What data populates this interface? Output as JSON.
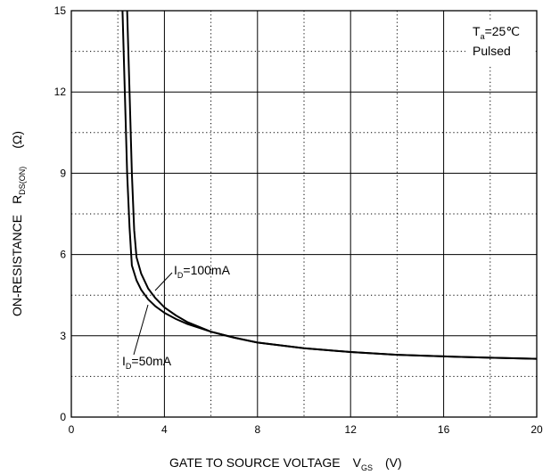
{
  "chart_data": {
    "type": "line",
    "xlim": [
      0,
      20
    ],
    "ylim": [
      0,
      15
    ],
    "x_ticks": [
      0,
      4,
      8,
      12,
      16,
      20
    ],
    "x_tick_labels": [
      "0",
      "4",
      "8",
      "12",
      "16",
      "20"
    ],
    "y_ticks": [
      0,
      3,
      6,
      9,
      12,
      15
    ],
    "y_tick_labels": [
      "0",
      "3",
      "6",
      "9",
      "12",
      "15"
    ],
    "x_minor_ticks": [
      2,
      6,
      10,
      14,
      18
    ],
    "y_minor_ticks": [
      1.5,
      4.5,
      7.5,
      10.5,
      13.5
    ],
    "grid": "major solid, minor dotted",
    "xlabel": {
      "main": "GATE TO SOURCE VOLTAGE",
      "symbol": "V",
      "symbol_sub": "GS",
      "unit": "(V)"
    },
    "ylabel": {
      "main": "ON-RESISTANCE",
      "symbol": "R",
      "symbol_sub": "DS(ON)",
      "unit": "(Ω)"
    },
    "conditions": {
      "temp_symbol": "T",
      "temp_sub": "a",
      "temp_value": "=25℃",
      "mode": "Pulsed"
    },
    "series": [
      {
        "name_symbol": "I",
        "name_sub": "D",
        "name_value": "=100mA",
        "points": [
          [
            2.4,
            15.0
          ],
          [
            2.5,
            12.0
          ],
          [
            2.6,
            9.0
          ],
          [
            2.7,
            6.9
          ],
          [
            2.8,
            5.9
          ],
          [
            3.0,
            5.3
          ],
          [
            3.3,
            4.75
          ],
          [
            3.6,
            4.4
          ],
          [
            4.0,
            4.05
          ],
          [
            4.5,
            3.75
          ],
          [
            5.0,
            3.5
          ],
          [
            6.0,
            3.15
          ],
          [
            7.0,
            2.93
          ],
          [
            8.0,
            2.75
          ],
          [
            10.0,
            2.54
          ],
          [
            12.0,
            2.4
          ],
          [
            14.0,
            2.3
          ],
          [
            16.0,
            2.24
          ],
          [
            18.0,
            2.19
          ],
          [
            20.0,
            2.15
          ]
        ]
      },
      {
        "name_symbol": "I",
        "name_sub": "D",
        "name_value": "=50mA",
        "points": [
          [
            2.2,
            15.0
          ],
          [
            2.3,
            12.0
          ],
          [
            2.4,
            9.0
          ],
          [
            2.5,
            7.0
          ],
          [
            2.6,
            5.6
          ],
          [
            2.8,
            5.05
          ],
          [
            3.0,
            4.7
          ],
          [
            3.3,
            4.35
          ],
          [
            3.6,
            4.1
          ],
          [
            4.0,
            3.85
          ],
          [
            4.5,
            3.62
          ],
          [
            5.0,
            3.43
          ],
          [
            6.0,
            3.15
          ],
          [
            7.0,
            2.93
          ],
          [
            8.0,
            2.75
          ],
          [
            10.0,
            2.54
          ],
          [
            12.0,
            2.4
          ],
          [
            14.0,
            2.3
          ],
          [
            16.0,
            2.24
          ],
          [
            18.0,
            2.19
          ],
          [
            20.0,
            2.15
          ]
        ]
      }
    ]
  }
}
